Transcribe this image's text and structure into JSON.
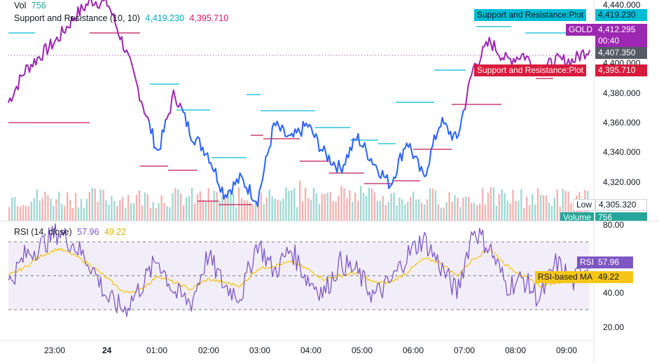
{
  "legend": {
    "vol_label": "Vol",
    "vol_value": "756",
    "sr_label": "Support and Resistance (10, 10)",
    "sr_resistance": "4,419.230",
    "sr_support": "4,395.710",
    "rsi_label": "RSI (14, close)",
    "rsi_value": "57.96",
    "rsi_ma_value": "49.22"
  },
  "price_axis": {
    "ticks": [
      "4,440.000",
      "4,400.000",
      "4,380.000",
      "4,360.000",
      "4,340.000",
      "4,320.000"
    ]
  },
  "rsi_axis": {
    "ticks": [
      "80.00",
      "40.00",
      "20.00"
    ]
  },
  "time_axis": {
    "ticks": [
      "23:00",
      "24",
      "01:00",
      "02:00",
      "03:00",
      "04:00",
      "05:00",
      "06:00",
      "07:00",
      "08:00",
      "09:00"
    ]
  },
  "tags": {
    "resistance_plot": "Support and Resistance:Plot",
    "resistance_value": "4,419.230",
    "symbol": "GOLD",
    "symbol_price": "4,412.295",
    "countdown": "00:40",
    "price_407": "4,407.350",
    "support_plot": "Support and Resistance:Plot",
    "support_value": "4,395.710",
    "low_label": "Low",
    "low_value": "4,305.320",
    "volume_label": "Volume",
    "volume_value": "756",
    "rsi_tag": "RSI",
    "rsi_tag_value": "57.96",
    "rsi_ma_tag": "RSI-based MA",
    "rsi_ma_tag_value": "49.22"
  },
  "colors": {
    "price_up": "#9c27b0",
    "price_down": "#2962ff",
    "resistance": "#00bcd4",
    "support": "#c2185b",
    "rsi": "#7e57c2",
    "rsi_ma": "#f5c518",
    "vol_up": "#80cbc4",
    "vol_down": "#ef9a9a"
  },
  "chart_data": [
    {
      "type": "line",
      "title": "GOLD",
      "x": [
        "22:10",
        "22:40",
        "23:00",
        "23:20",
        "23:40",
        "24",
        "00:20",
        "00:40",
        "00:50",
        "01:00",
        "01:20",
        "01:40",
        "01:50",
        "02:00",
        "02:20",
        "02:40",
        "03:00",
        "03:20",
        "03:40",
        "04:00",
        "04:20",
        "04:40",
        "05:00",
        "05:20",
        "05:40",
        "06:00",
        "06:20",
        "06:40",
        "07:00",
        "07:20",
        "07:40",
        "08:00",
        "08:20",
        "08:40",
        "09:00",
        "09:20"
      ],
      "series": [
        {
          "name": "GOLD",
          "values": [
            4378,
            4398,
            4408,
            4418,
            4432,
            4442,
            4440,
            4412,
            4380,
            4346,
            4384,
            4358,
            4346,
            4320,
            4330,
            4316,
            4364,
            4354,
            4364,
            4346,
            4336,
            4356,
            4340,
            4326,
            4354,
            4330,
            4366,
            4354,
            4400,
            4416,
            4404,
            4408,
            4398,
            4404,
            4404,
            4412
          ]
        }
      ],
      "ylim": [
        4310,
        4440
      ]
    },
    {
      "type": "line",
      "title": "RSI (14, close)",
      "series": [
        {
          "name": "RSI",
          "values": [
            45,
            62,
            68,
            76,
            68,
            56,
            36,
            30,
            44,
            60,
            40,
            34,
            62,
            44,
            38,
            70,
            52,
            66,
            48,
            40,
            58,
            52,
            38,
            46,
            62,
            72,
            56,
            40,
            78,
            66,
            44,
            48,
            36,
            58,
            46,
            58
          ]
        },
        {
          "name": "RSI-based MA",
          "values": [
            50,
            55,
            62,
            66,
            62,
            56,
            48,
            40,
            42,
            50,
            46,
            42,
            48,
            46,
            44,
            54,
            56,
            58,
            54,
            48,
            50,
            52,
            46,
            46,
            52,
            60,
            58,
            50,
            60,
            66,
            56,
            50,
            44,
            46,
            48,
            49
          ]
        }
      ],
      "ylim": [
        20,
        80
      ],
      "bands": [
        30,
        50,
        70
      ]
    }
  ]
}
